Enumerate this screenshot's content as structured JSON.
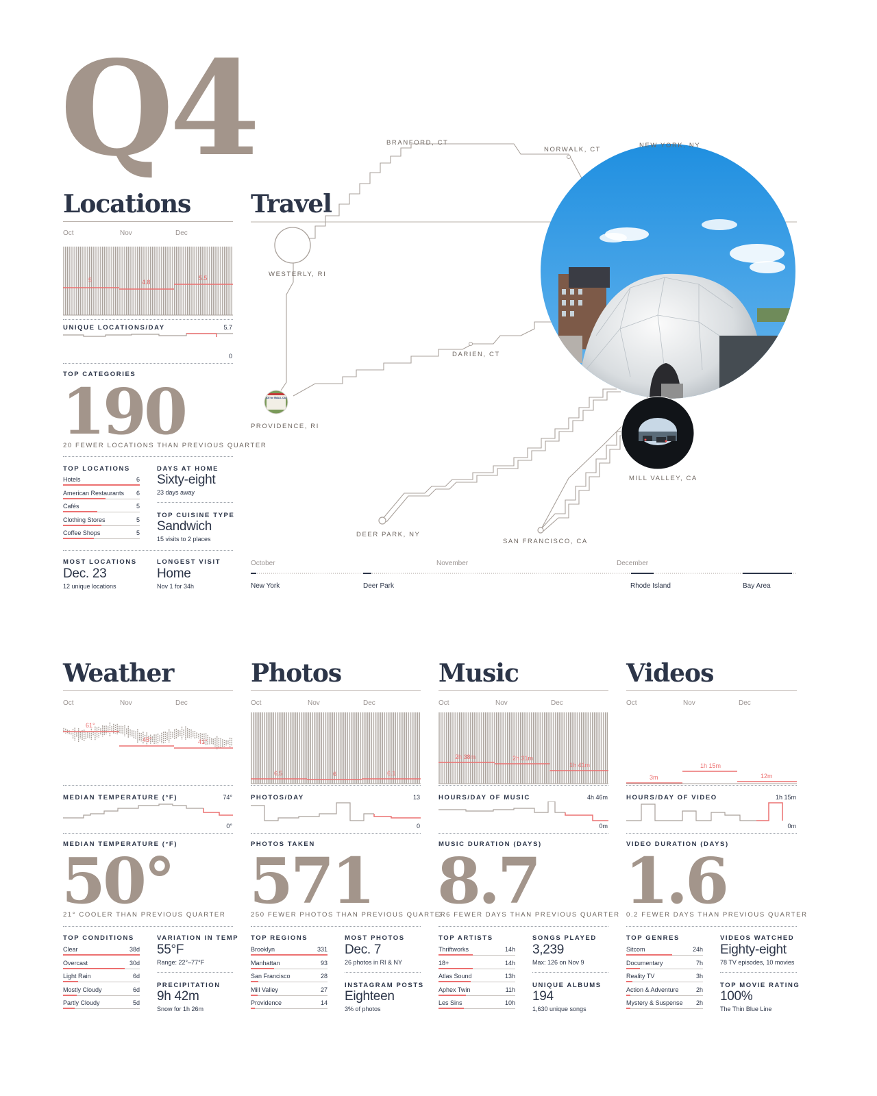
{
  "quarter": "Q4",
  "colors": {
    "accent": "#ec7070",
    "taupe": "#a3958b",
    "navy": "#2c3548",
    "line": "#a9a19b"
  },
  "months": [
    "Oct",
    "Nov",
    "Dec"
  ],
  "locations": {
    "title": "Locations",
    "avg_labels": [
      "5",
      "4.8",
      "5.5"
    ],
    "metric_label": "UNIQUE LOCATIONS/DAY",
    "max": "5.7",
    "min": "0",
    "categories_label": "TOP CATEGORIES",
    "big": "190",
    "comparison": "20 FEWER LOCATIONS THAN PREVIOUS QUARTER",
    "top_label": "TOP LOCATIONS",
    "top": [
      {
        "name": "Hotels",
        "value": "6",
        "share": 1.0
      },
      {
        "name": "American Restaurants",
        "value": "6",
        "share": 0.55
      },
      {
        "name": "Cafés",
        "value": "5",
        "share": 0.45
      },
      {
        "name": "Clothing Stores",
        "value": "5",
        "share": 0.5
      },
      {
        "name": "Coffee Shops",
        "value": "5",
        "share": 0.4
      }
    ],
    "days_home_label": "DAYS AT HOME",
    "days_home": "Sixty-eight",
    "days_home_sub": "23 days away",
    "cuisine_label": "TOP CUISINE TYPE",
    "cuisine": "Sandwich",
    "cuisine_sub": "15 visits to 2 places",
    "most_label": "MOST LOCATIONS",
    "most": "Dec. 23",
    "most_sub": "12 unique locations",
    "longest_label": "LONGEST VISIT",
    "longest": "Home",
    "longest_sub": "Nov 1 for 34h"
  },
  "travel": {
    "title": "Travel",
    "cities": {
      "branford": "BRANFORD, CT",
      "norwalk": "NORWALK, CT",
      "newyork": "NEW YORK, NY",
      "westerly": "WESTERLY, RI",
      "darien": "DARIEN, CT",
      "providence": "PROVIDENCE, RI",
      "millvalley": "MILL VALLEY, CA",
      "deerpark": "DEER PARK, NY",
      "sanfrancisco": "SAN FRANCISCO, CA"
    },
    "sign_text": "This SPACE for SMALL CARS ONLY",
    "timeline_months": [
      "October",
      "November",
      "December"
    ],
    "timeline_places": [
      "New York",
      "Deer Park",
      "Rhode Island",
      "Bay Area"
    ]
  },
  "weather": {
    "title": "Weather",
    "avg_labels": [
      "61°",
      "45°",
      "41°"
    ],
    "metric_label": "MEDIAN TEMPERATURE (°F)",
    "max": "74°",
    "min": "0°",
    "big_label": "MEDIAN TEMPERATURE (°F)",
    "big": "50°",
    "comparison": "21° COOLER THAN PREVIOUS QUARTER",
    "top_label": "TOP CONDITIONS",
    "top": [
      {
        "name": "Clear",
        "value": "38d",
        "share": 1.0
      },
      {
        "name": "Overcast",
        "value": "30d",
        "share": 0.8
      },
      {
        "name": "Light Rain",
        "value": "6d",
        "share": 0.2
      },
      {
        "name": "Mostly Cloudy",
        "value": "6d",
        "share": 0.18
      },
      {
        "name": "Partly Cloudy",
        "value": "5d",
        "share": 0.15
      }
    ],
    "r1_label": "VARIATION IN TEMP",
    "r1": "55°F",
    "r1_sub": "Range: 22°–77°F",
    "r2_label": "PRECIPITATION",
    "r2": "9h 42m",
    "r2_sub": "Snow for 1h 26m"
  },
  "photos": {
    "title": "Photos",
    "avg_labels": [
      "6.5",
      "6",
      "6.1"
    ],
    "metric_label": "PHOTOS/DAY",
    "max": "13",
    "min": "0",
    "big_label": "PHOTOS TAKEN",
    "big": "571",
    "comparison": "250 FEWER PHOTOS THAN PREVIOUS QUARTER",
    "top_label": "TOP REGIONS",
    "top": [
      {
        "name": "Brooklyn",
        "value": "331",
        "share": 1.0
      },
      {
        "name": "Manhattan",
        "value": "93",
        "share": 0.3
      },
      {
        "name": "San Francisco",
        "value": "28",
        "share": 0.1
      },
      {
        "name": "Mill Valley",
        "value": "27",
        "share": 0.09
      },
      {
        "name": "Providence",
        "value": "14",
        "share": 0.05
      }
    ],
    "r1_label": "MOST PHOTOS",
    "r1": "Dec. 7",
    "r1_sub": "26 photos in RI & NY",
    "r2_label": "INSTAGRAM POSTS",
    "r2": "Eighteen",
    "r2_sub": "3% of photos"
  },
  "music": {
    "title": "Music",
    "avg_labels": [
      "2h 38m",
      "2h 31m",
      "1h 41m"
    ],
    "metric_label": "HOURS/DAY OF MUSIC",
    "max": "4h 46m",
    "min": "0m",
    "big_label": "MUSIC DURATION (DAYS)",
    "big": "8.7",
    "comparison": "3.6 FEWER DAYS THAN PREVIOUS QUARTER",
    "top_label": "TOP ARTISTS",
    "top": [
      {
        "name": "Thriftworks",
        "value": "14h",
        "share": 0.45
      },
      {
        "name": "18+",
        "value": "14h",
        "share": 0.45
      },
      {
        "name": "Atlas Sound",
        "value": "13h",
        "share": 0.42
      },
      {
        "name": "Aphex Twin",
        "value": "11h",
        "share": 0.36
      },
      {
        "name": "Les Sins",
        "value": "10h",
        "share": 0.33
      }
    ],
    "r1_label": "SONGS PLAYED",
    "r1": "3,239",
    "r1_sub": "Max: 126 on Nov 9",
    "r2_label": "UNIQUE ALBUMS",
    "r2": "194",
    "r2_sub": "1,630 unique songs"
  },
  "videos": {
    "title": "Videos",
    "avg_labels": [
      "3m",
      "1h 15m",
      "12m"
    ],
    "metric_label": "HOURS/DAY OF VIDEO",
    "max": "1h 15m",
    "min": "0m",
    "big_label": "VIDEO DURATION (DAYS)",
    "big": "1.6",
    "comparison": "0.2 FEWER DAYS THAN PREVIOUS QUARTER",
    "top_label": "TOP GENRES",
    "top": [
      {
        "name": "Sitcom",
        "value": "24h",
        "share": 0.6
      },
      {
        "name": "Documentary",
        "value": "7h",
        "share": 0.18
      },
      {
        "name": "Reality TV",
        "value": "3h",
        "share": 0.08
      },
      {
        "name": "Action & Adventure",
        "value": "2h",
        "share": 0.05
      },
      {
        "name": "Mystery & Suspense",
        "value": "2h",
        "share": 0.05
      }
    ],
    "r1_label": "VIDEOS WATCHED",
    "r1": "Eighty-eight",
    "r1_sub": "78 TV episodes, 10 movies",
    "r2_label": "TOP MOVIE RATING",
    "r2": "100%",
    "r2_sub": "The Thin Blue Line"
  }
}
